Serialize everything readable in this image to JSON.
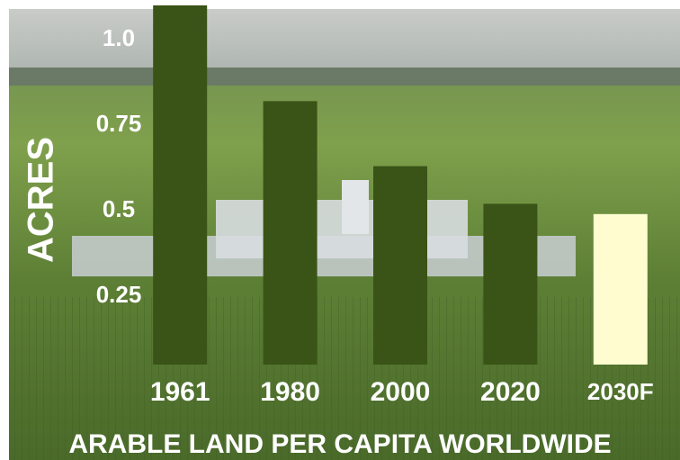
{
  "chart_data": {
    "type": "bar",
    "title": "ARABLE LAND PER CAPITA WORLDWIDE",
    "y_label": "ACRES",
    "categories": [
      "1961",
      "1980",
      "2000",
      "2020",
      "2030F"
    ],
    "values": [
      1.1,
      0.82,
      0.63,
      0.52,
      0.49
    ],
    "colors": [
      "#3a5317",
      "#3a5317",
      "#3a5317",
      "#3a5317",
      "#fffdd0"
    ],
    "ylim": [
      0.05,
      1.1
    ],
    "yticks": [
      {
        "value": 1,
        "label": "1.0"
      },
      0.75,
      0.5,
      0.25
    ],
    "grid": false
  }
}
